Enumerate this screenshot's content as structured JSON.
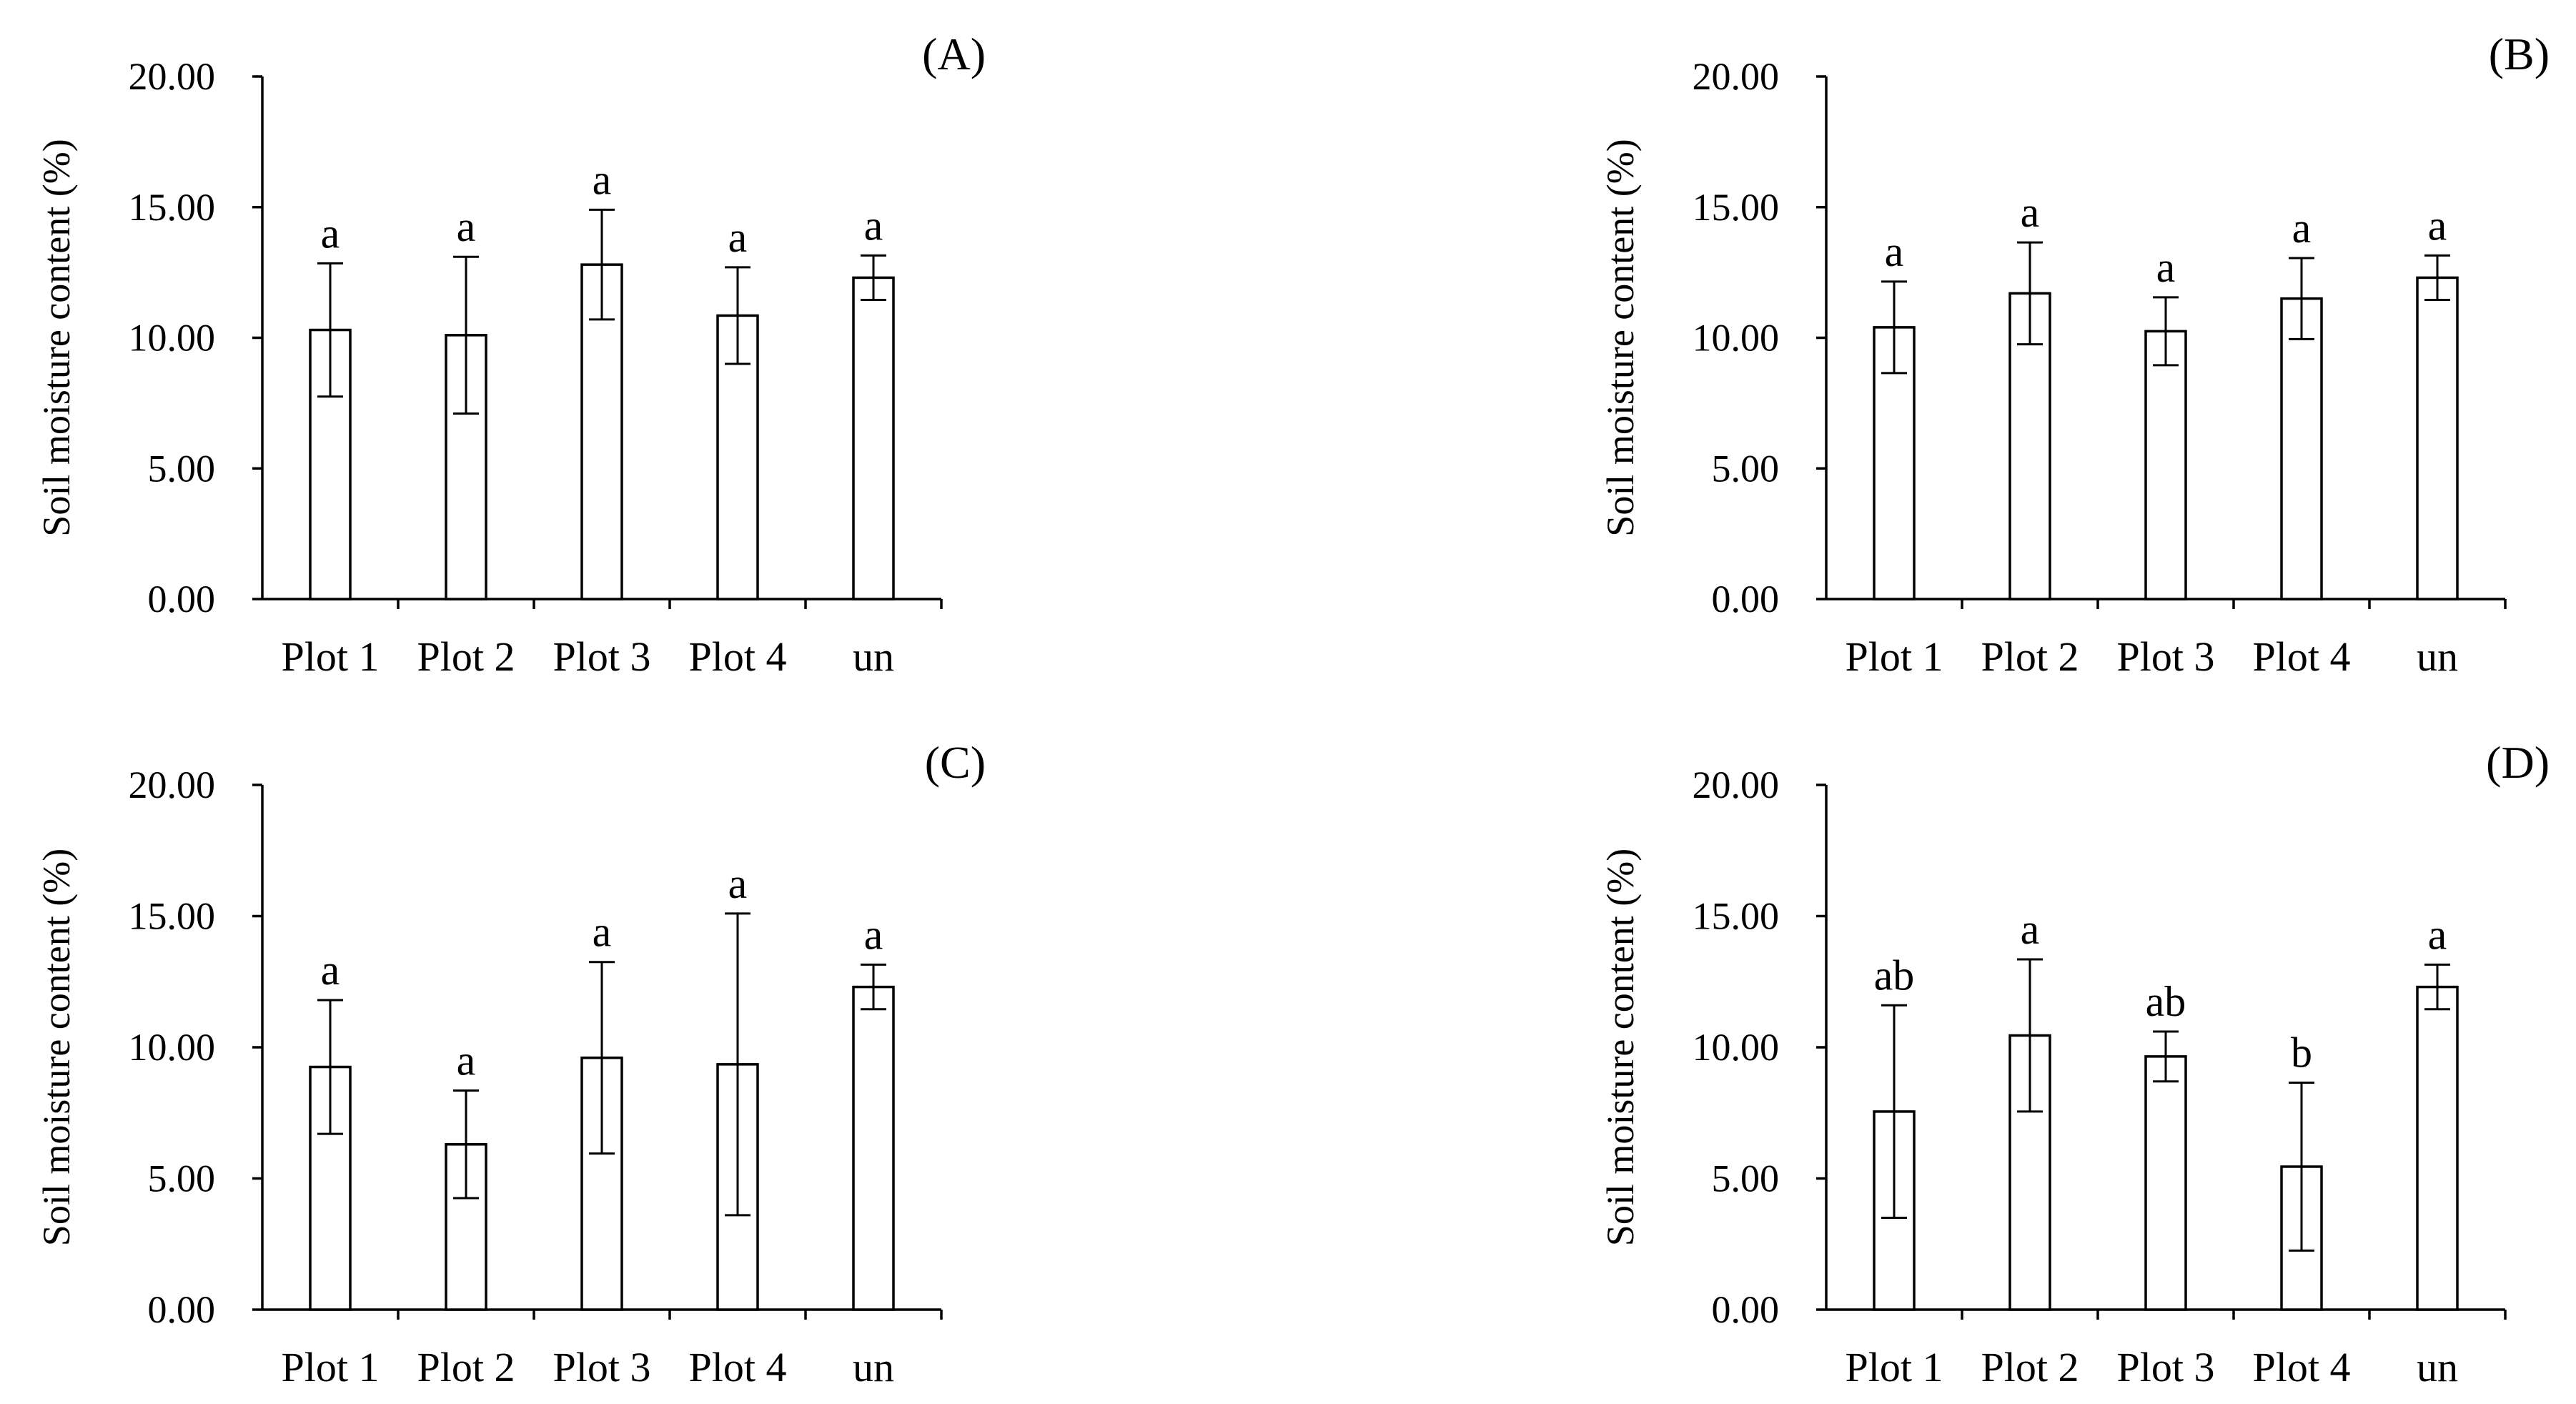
{
  "chart_data": [
    {
      "panel": "(A)",
      "type": "bar",
      "ylabel": "Soil moisture content (%)",
      "ylim": [
        0,
        20
      ],
      "yticks": [
        "0.00",
        "5.00",
        "10.00",
        "15.00",
        "20.00"
      ],
      "categories": [
        "Plot 1",
        "Plot 2",
        "Plot 3",
        "Plot 4",
        "un"
      ],
      "values": [
        10.3,
        10.1,
        12.8,
        10.85,
        12.3
      ],
      "errors": [
        2.55,
        3.0,
        2.1,
        1.85,
        0.85
      ],
      "letters": [
        "a",
        "a",
        "a",
        "a",
        "a"
      ]
    },
    {
      "panel": "(B)",
      "type": "bar",
      "ylabel": "Soil moisture content (%)",
      "ylim": [
        0,
        20
      ],
      "yticks": [
        "0.00",
        "5.00",
        "10.00",
        "15.00",
        "20.00"
      ],
      "categories": [
        "Plot 1",
        "Plot 2",
        "Plot 3",
        "Plot 4",
        "un"
      ],
      "values": [
        10.4,
        11.7,
        10.25,
        11.5,
        12.3
      ],
      "errors": [
        1.75,
        1.95,
        1.3,
        1.55,
        0.85
      ],
      "letters": [
        "a",
        "a",
        "a",
        "a",
        "a"
      ]
    },
    {
      "panel": "(C)",
      "type": "bar",
      "ylabel": "Soil moisture content (%)",
      "ylim": [
        0,
        20
      ],
      "yticks": [
        "0.00",
        "5.00",
        "10.00",
        "15.00",
        "20.00"
      ],
      "categories": [
        "Plot 1",
        "Plot 2",
        "Plot 3",
        "Plot 4",
        "un"
      ],
      "values": [
        9.25,
        6.3,
        9.6,
        9.35,
        12.3
      ],
      "errors": [
        2.55,
        2.05,
        3.65,
        5.75,
        0.85
      ],
      "letters": [
        "a",
        "a",
        "a",
        "a",
        "a"
      ]
    },
    {
      "panel": "(D)",
      "type": "bar",
      "ylabel": "Soil moisture content (%)",
      "ylim": [
        0,
        20
      ],
      "yticks": [
        "0.00",
        "5.00",
        "10.00",
        "15.00",
        "20.00"
      ],
      "categories": [
        "Plot 1",
        "Plot 2",
        "Plot 3",
        "Plot 4",
        "un"
      ],
      "values": [
        7.55,
        10.45,
        9.65,
        5.45,
        12.3
      ],
      "errors": [
        4.05,
        2.9,
        0.95,
        3.2,
        0.85
      ],
      "letters": [
        "ab",
        "a",
        "ab",
        "b",
        "a"
      ]
    }
  ]
}
